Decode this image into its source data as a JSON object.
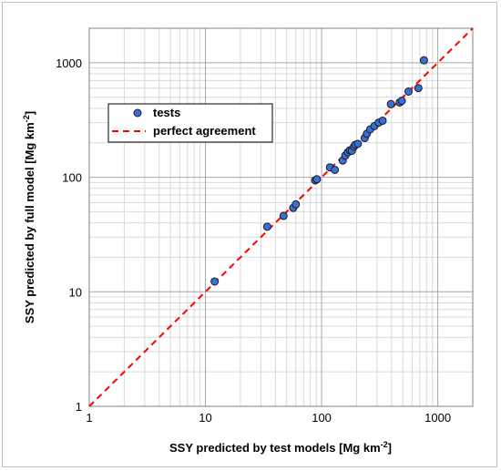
{
  "chart_data": {
    "type": "scatter",
    "xlabel": "SSY predicted by test models  [Mg km",
    "xlabel_sup": "-2",
    "xlabel_end": "]",
    "ylabel": "SSY predicted by full model  [Mg km",
    "ylabel_sup": "-2",
    "ylabel_end": "]",
    "xscale": "log",
    "yscale": "log",
    "xlim": [
      1,
      2000
    ],
    "ylim": [
      1,
      2000
    ],
    "x_ticks": [
      1,
      10,
      100,
      1000
    ],
    "x_tick_labels": [
      "1",
      "10",
      "100",
      "1000"
    ],
    "y_ticks": [
      1,
      10,
      100,
      1000
    ],
    "y_tick_labels": [
      "1",
      "10",
      "100",
      "1000"
    ],
    "grid": true,
    "legend_position": "upper-left",
    "series": [
      {
        "name": "tests",
        "marker": "circle",
        "color": "#3b6fd8",
        "points": [
          [
            12,
            12.3
          ],
          [
            34,
            37
          ],
          [
            47,
            46
          ],
          [
            57,
            54
          ],
          [
            60,
            58
          ],
          [
            88,
            94
          ],
          [
            91,
            96
          ],
          [
            118,
            122
          ],
          [
            130,
            116
          ],
          [
            152,
            140
          ],
          [
            160,
            155
          ],
          [
            168,
            165
          ],
          [
            175,
            172
          ],
          [
            182,
            170
          ],
          [
            190,
            185
          ],
          [
            195,
            192
          ],
          [
            205,
            196
          ],
          [
            235,
            220
          ],
          [
            245,
            240
          ],
          [
            262,
            262
          ],
          [
            285,
            280
          ],
          [
            310,
            300
          ],
          [
            335,
            312
          ],
          [
            395,
            435
          ],
          [
            470,
            450
          ],
          [
            490,
            465
          ],
          [
            560,
            560
          ],
          [
            680,
            600
          ],
          [
            760,
            1050
          ]
        ]
      },
      {
        "name": "perfect agreement",
        "type": "line",
        "style": "dashed",
        "color": "#ff0000",
        "points": [
          [
            1,
            1
          ],
          [
            2000,
            2000
          ]
        ]
      }
    ]
  }
}
